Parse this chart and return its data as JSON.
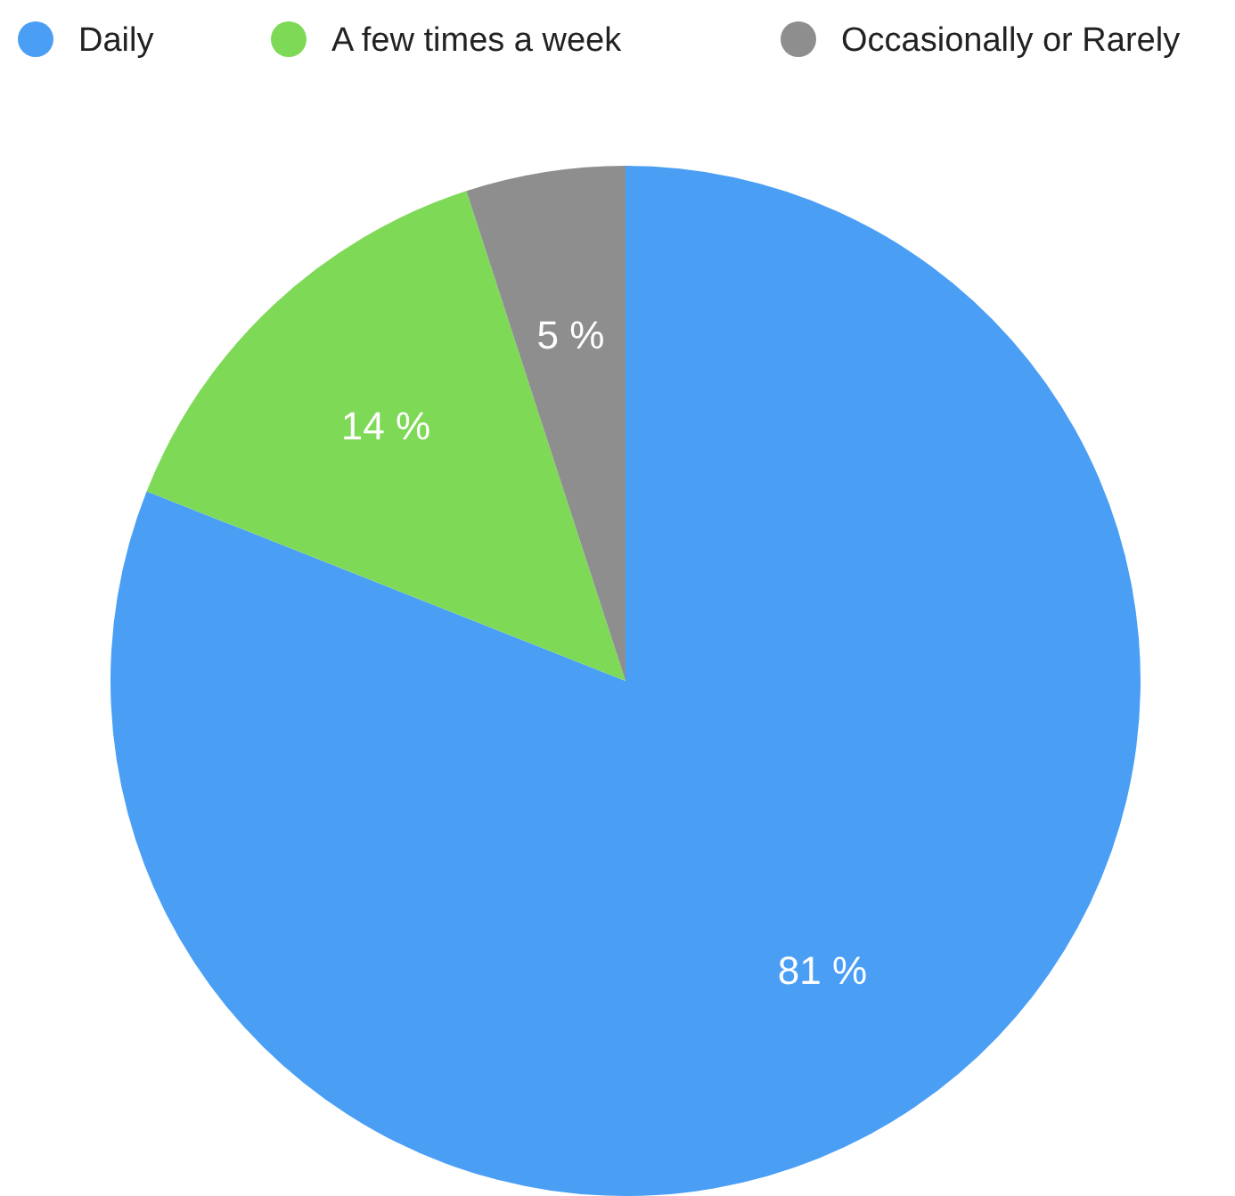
{
  "chart_data": {
    "type": "pie",
    "categories": [
      "Daily",
      "A few times a week",
      "Occasionally or Rarely"
    ],
    "values": [
      81,
      14,
      5
    ],
    "colors": [
      "#4a9ff5",
      "#7ed957",
      "#8e8e8e"
    ],
    "value_labels": [
      "81 %",
      "14 %",
      "5 %"
    ],
    "legend": "top"
  }
}
